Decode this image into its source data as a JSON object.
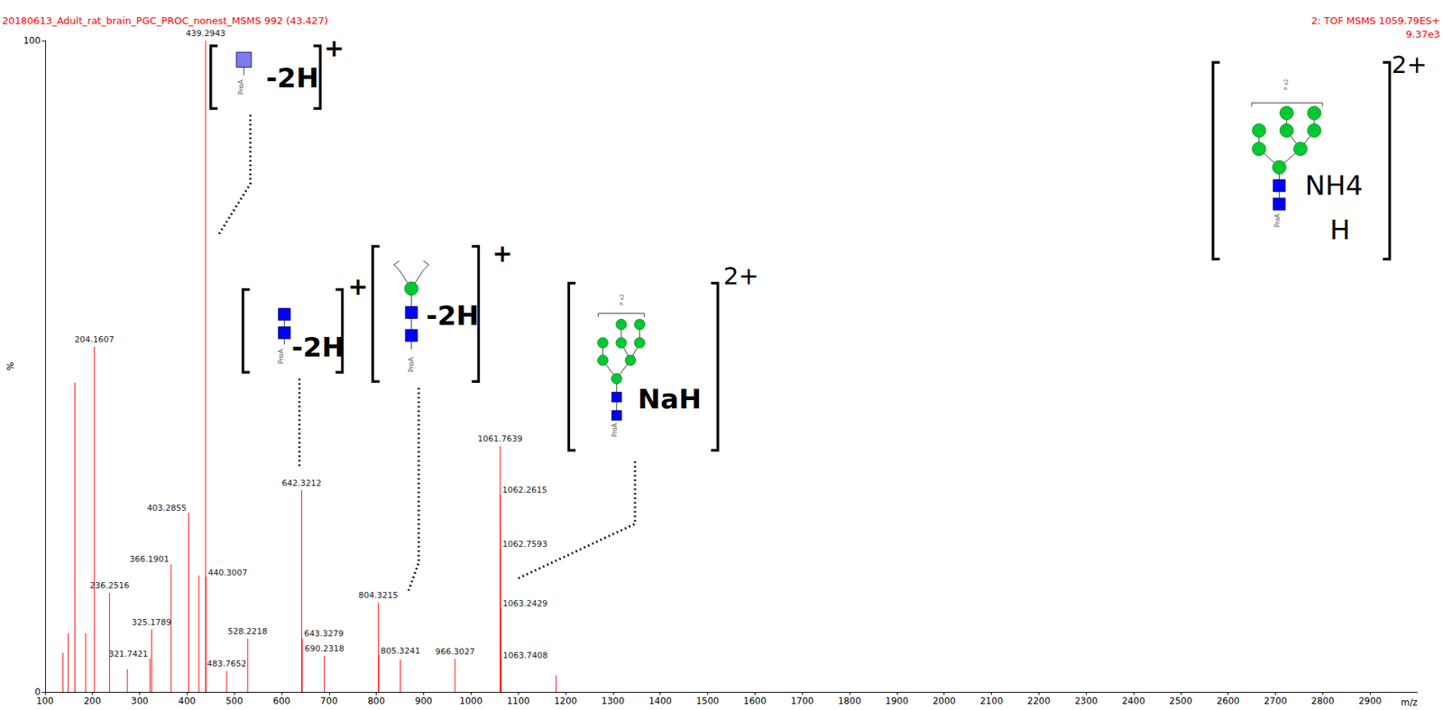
{
  "chart_data": {
    "type": "bar",
    "title": "20180613_Adult_rat_brain_PGC_PROC_nonest_MSMS 992 (43.427)",
    "subtitle": [
      "2: TOF MSMS 1059.79ES+",
      "9.37e3"
    ],
    "x_label": "m/z",
    "y_label": "%",
    "color": "#ff0000",
    "grid": false,
    "x": [
      138.0,
      149.0,
      163.0,
      186.0,
      204.1607,
      236.2516,
      274.0,
      321.7421,
      325.1789,
      366.1901,
      403.2855,
      425.0,
      439.2943,
      440.3007,
      483.7652,
      528.2218,
      642.3212,
      643.3279,
      690.2318,
      804.3215,
      805.3241,
      851.0,
      966.3027,
      1061.7639,
      1062.2615,
      1062.7593,
      1063.2429,
      1063.7408,
      1180.0
    ],
    "values": [
      6.0,
      9.0,
      47.5,
      9.0,
      53.0,
      15.2,
      3.5,
      5.1,
      9.6,
      19.6,
      27.5,
      17.9,
      100,
      17.6,
      3.2,
      8.2,
      31.0,
      8.2,
      5.5,
      13.7,
      5.6,
      5.0,
      5.1,
      37.8,
      30.3,
      21.9,
      12.8,
      4.9,
      2.5
    ],
    "labels": [
      null,
      null,
      null,
      null,
      "204.1607",
      "236.2516",
      null,
      "321.7421",
      "325.1789",
      "366.1901",
      "403.2855",
      null,
      "439.2943",
      "440.3007",
      "483.7652",
      "528.2218",
      "642.3212",
      "643.3279",
      "690.2318",
      "804.3215",
      "805.3241",
      null,
      "966.3027",
      "1061.7639",
      "1062.2615",
      "1062.7593",
      "1063.2429",
      "1063.7408",
      null
    ],
    "xlim": [
      100,
      3000
    ],
    "xticks": [
      100,
      200,
      300,
      400,
      500,
      600,
      700,
      800,
      900,
      1000,
      1100,
      1200,
      1300,
      1400,
      1500,
      1600,
      1700,
      1800,
      1900,
      2000,
      2100,
      2200,
      2300,
      2400,
      2500,
      2600,
      2700,
      2800,
      2900
    ],
    "ylim": [
      0,
      100
    ],
    "yticks": [
      0,
      100
    ],
    "annotations": [
      {
        "peak": 439.2943,
        "texts": [
          "-2H"
        ],
        "charge": "+",
        "residues": [
          "ProA"
        ]
      },
      {
        "peak": 642.3212,
        "texts": [
          "-2H"
        ],
        "charge": "+",
        "residues": [
          "ProA"
        ]
      },
      {
        "peak": 804.3215,
        "texts": [
          "-2H"
        ],
        "charge": "+",
        "residues": [
          "ProA"
        ]
      },
      {
        "peak": 1061.7639,
        "texts": [
          "NaH"
        ],
        "charge": "2+",
        "residues": [
          "P x2",
          "ProA"
        ]
      },
      {
        "texts": [
          "NH4",
          "H"
        ],
        "charge": "2+",
        "residues": [
          "P x2",
          "ProA"
        ]
      }
    ]
  }
}
